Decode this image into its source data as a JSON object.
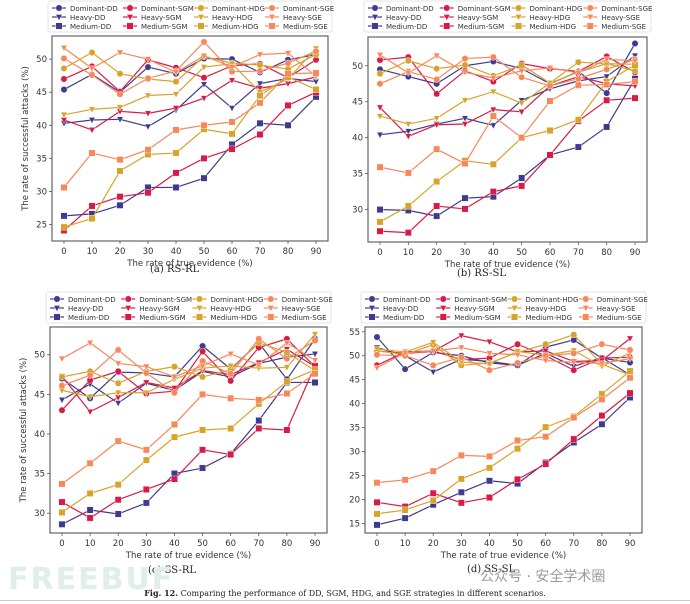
{
  "figure": {
    "caption_label": "Fig. 12.",
    "caption_text": " Comparing the performance of DD, SGM, HDG, and SGE strategies in different scenarios.",
    "watermark_logo": "FREEBUF",
    "watermark_text": "公众号 · 安全学术圈"
  },
  "styles": {
    "DD": "#3f3a8f",
    "SGM": "#d81b45",
    "HDG": "#d8a32a",
    "SGE": "#f8875a"
  },
  "chart_data": [
    {
      "id": "a",
      "type": "line",
      "subcaption": "(a)  RS-RL",
      "title": "",
      "xlabel": "The rate of true evidence (%)",
      "ylabel": "The rate of successful attacks (%)",
      "x": [
        0,
        10,
        20,
        30,
        40,
        50,
        60,
        70,
        80,
        90
      ],
      "xticks": [
        "0",
        "10",
        "20",
        "30",
        "40",
        "50",
        "60",
        "70",
        "80",
        "90"
      ],
      "ylim": [
        22.5,
        53.5
      ],
      "yticks": [
        25,
        30,
        35,
        40,
        45,
        50
      ],
      "grid": false,
      "legend": "top-outside",
      "series": [
        {
          "name": "Dominant-DD",
          "strategy": "DD",
          "marker": "circle",
          "values": [
            45.4,
            47.7,
            45.0,
            48.8,
            47.8,
            50.1,
            50.0,
            48.0,
            49.9,
            50.7
          ]
        },
        {
          "name": "Heavy-DD",
          "strategy": "DD",
          "marker": "triangle-down",
          "values": [
            40.3,
            40.8,
            40.9,
            39.8,
            42.3,
            46.2,
            42.6,
            46.3,
            47.1,
            46.6
          ]
        },
        {
          "name": "Medium-DD",
          "strategy": "DD",
          "marker": "square",
          "values": [
            26.3,
            26.6,
            27.9,
            30.6,
            30.6,
            32.0,
            37.1,
            40.3,
            40.0,
            44.3
          ]
        },
        {
          "name": "Dominant-SGM",
          "strategy": "SGM",
          "marker": "circle",
          "values": [
            47.0,
            48.9,
            45.1,
            49.9,
            48.7,
            47.2,
            49.0,
            49.3,
            47.2,
            49.9
          ]
        },
        {
          "name": "Heavy-SGM",
          "strategy": "SGM",
          "marker": "triangle-down",
          "values": [
            40.8,
            39.3,
            42.1,
            41.8,
            42.6,
            44.1,
            46.8,
            45.6,
            46.3,
            47.3
          ]
        },
        {
          "name": "Medium-SGM",
          "strategy": "SGM",
          "marker": "square",
          "values": [
            24.1,
            27.8,
            29.2,
            29.8,
            32.8,
            35.0,
            36.4,
            38.6,
            43.0,
            45.0
          ]
        },
        {
          "name": "Dominant-HDG",
          "strategy": "HDG",
          "marker": "circle",
          "values": [
            48.6,
            51.0,
            47.8,
            47.0,
            46.6,
            50.4,
            49.4,
            49.1,
            48.5,
            50.7
          ]
        },
        {
          "name": "Heavy-HDG",
          "strategy": "HDG",
          "marker": "triangle-down",
          "values": [
            41.6,
            42.4,
            42.7,
            44.5,
            44.7,
            48.8,
            49.3,
            45.0,
            47.0,
            51.6
          ]
        },
        {
          "name": "Medium-HDG",
          "strategy": "HDG",
          "marker": "square",
          "values": [
            24.6,
            25.9,
            33.1,
            35.6,
            35.8,
            39.4,
            38.7,
            44.5,
            47.3,
            45.4
          ]
        },
        {
          "name": "Dominant-SGE",
          "strategy": "SGE",
          "marker": "circle",
          "values": [
            50.1,
            47.6,
            44.7,
            47.1,
            48.2,
            52.6,
            48.1,
            48.2,
            49.4,
            51.2
          ]
        },
        {
          "name": "Heavy-SGE",
          "strategy": "SGE",
          "marker": "triangle-down",
          "values": [
            51.7,
            48.6,
            51.0,
            50.0,
            48.0,
            50.5,
            48.8,
            50.7,
            50.9,
            47.4
          ]
        },
        {
          "name": "Medium-SGE",
          "strategy": "SGE",
          "marker": "square",
          "values": [
            30.6,
            35.8,
            34.8,
            36.3,
            39.3,
            40.0,
            40.5,
            43.4,
            47.8,
            47.9
          ]
        }
      ]
    },
    {
      "id": "b",
      "type": "line",
      "subcaption": "(b)  RS-SL",
      "title": "",
      "xlabel": "The rate of true evidence (%)",
      "ylabel": "The rate of successful attacks (%)",
      "x": [
        0,
        10,
        20,
        30,
        40,
        50,
        60,
        70,
        80,
        90
      ],
      "xticks": [
        "0",
        "10",
        "20",
        "30",
        "40",
        "50",
        "60",
        "70",
        "80",
        "90"
      ],
      "ylim": [
        25.5,
        54.0
      ],
      "yticks": [
        30,
        35,
        40,
        45,
        50
      ],
      "grid": false,
      "legend": "top-outside",
      "series": [
        {
          "name": "Dominant-DD",
          "strategy": "DD",
          "marker": "circle",
          "values": [
            49.5,
            48.5,
            47.5,
            50.0,
            50.6,
            49.6,
            47.5,
            49.2,
            46.2,
            53.1
          ]
        },
        {
          "name": "Heavy-DD",
          "strategy": "DD",
          "marker": "triangle-down",
          "values": [
            40.4,
            40.9,
            41.9,
            42.7,
            41.7,
            45.2,
            46.8,
            47.9,
            48.5,
            51.4
          ]
        },
        {
          "name": "Medium-DD",
          "strategy": "DD",
          "marker": "square",
          "values": [
            30.0,
            29.9,
            29.1,
            31.6,
            31.8,
            34.4,
            37.6,
            38.7,
            41.5,
            48.2
          ]
        },
        {
          "name": "Dominant-SGM",
          "strategy": "SGM",
          "marker": "circle",
          "values": [
            50.8,
            51.2,
            46.1,
            49.3,
            47.8,
            50.3,
            49.6,
            49.2,
            51.3,
            49.1
          ]
        },
        {
          "name": "Heavy-SGM",
          "strategy": "SGM",
          "marker": "triangle-down",
          "values": [
            44.2,
            40.2,
            41.8,
            41.9,
            43.9,
            43.6,
            47.2,
            48.5,
            47.5,
            47.2
          ]
        },
        {
          "name": "Medium-SGM",
          "strategy": "SGM",
          "marker": "square",
          "values": [
            27.0,
            26.8,
            30.5,
            30.1,
            32.5,
            33.3,
            37.6,
            42.3,
            45.2,
            45.5
          ]
        },
        {
          "name": "Dominant-HDG",
          "strategy": "HDG",
          "marker": "circle",
          "values": [
            48.9,
            50.7,
            49.6,
            50.1,
            48.6,
            50.1,
            47.6,
            50.5,
            50.3,
            49.3
          ]
        },
        {
          "name": "Heavy-HDG",
          "strategy": "HDG",
          "marker": "triangle-down",
          "values": [
            43.0,
            41.9,
            42.7,
            45.2,
            46.4,
            44.8,
            47.6,
            49.1,
            50.3,
            50.2
          ]
        },
        {
          "name": "Medium-HDG",
          "strategy": "HDG",
          "marker": "square",
          "values": [
            28.3,
            30.5,
            33.9,
            36.8,
            36.3,
            40.0,
            41.0,
            42.5,
            47.8,
            50.1
          ]
        },
        {
          "name": "Dominant-SGE",
          "strategy": "SGE",
          "marker": "circle",
          "values": [
            47.5,
            49.2,
            48.1,
            51.0,
            51.2,
            48.4,
            47.2,
            48.2,
            49.5,
            50.9
          ]
        },
        {
          "name": "Heavy-SGE",
          "strategy": "SGE",
          "marker": "triangle-down",
          "values": [
            51.5,
            49.0,
            51.4,
            49.1,
            48.3,
            49.3,
            49.7,
            49.0,
            50.9,
            50.7
          ]
        },
        {
          "name": "Medium-SGE",
          "strategy": "SGE",
          "marker": "square",
          "values": [
            35.9,
            35.1,
            38.4,
            36.4,
            43.0,
            40.0,
            45.1,
            47.3,
            47.4,
            47.8
          ]
        }
      ]
    },
    {
      "id": "c",
      "type": "line",
      "subcaption": "(c)  SS-RL",
      "title": "",
      "xlabel": "The rate of true evidence (%)",
      "ylabel": "The rate of successful attacks (%)",
      "x": [
        0,
        10,
        20,
        30,
        40,
        50,
        60,
        70,
        80,
        90
      ],
      "xticks": [
        "0",
        "10",
        "20",
        "30",
        "40",
        "50",
        "60",
        "70",
        "80",
        "90"
      ],
      "ylim": [
        27.5,
        53.5
      ],
      "yticks": [
        30,
        35,
        40,
        45,
        50
      ],
      "grid": false,
      "legend": "top-outside",
      "series": [
        {
          "name": "Dominant-DD",
          "strategy": "DD",
          "marker": "circle",
          "values": [
            47.0,
            44.5,
            47.8,
            47.7,
            47.2,
            51.1,
            48.2,
            51.5,
            46.9,
            52.0
          ]
        },
        {
          "name": "Heavy-DD",
          "strategy": "DD",
          "marker": "triangle-down",
          "values": [
            44.3,
            46.3,
            43.9,
            46.4,
            45.5,
            47.9,
            47.2,
            48.9,
            49.7,
            50.1
          ]
        },
        {
          "name": "Medium-DD",
          "strategy": "DD",
          "marker": "square",
          "values": [
            28.6,
            30.4,
            29.9,
            31.3,
            35.0,
            35.7,
            37.5,
            41.7,
            46.5,
            46.5
          ]
        },
        {
          "name": "Dominant-SGM",
          "strategy": "SGM",
          "marker": "circle",
          "values": [
            43.0,
            46.8,
            47.9,
            45.1,
            45.4,
            50.4,
            46.7,
            50.9,
            52.0,
            48.5
          ]
        },
        {
          "name": "Heavy-SGM",
          "strategy": "SGM",
          "marker": "triangle-down",
          "values": [
            47.3,
            42.8,
            44.6,
            46.5,
            45.8,
            48.0,
            47.5,
            49.0,
            50.7,
            48.5
          ]
        },
        {
          "name": "Medium-SGM",
          "strategy": "SGM",
          "marker": "square",
          "values": [
            31.4,
            29.4,
            31.7,
            33.0,
            34.3,
            38.0,
            37.4,
            40.7,
            40.5,
            48.6
          ]
        },
        {
          "name": "Dominant-HDG",
          "strategy": "HDG",
          "marker": "circle",
          "values": [
            47.2,
            47.9,
            46.4,
            47.9,
            48.5,
            47.2,
            48.1,
            51.5,
            50.3,
            48.0
          ]
        },
        {
          "name": "Heavy-HDG",
          "strategy": "HDG",
          "marker": "triangle-down",
          "values": [
            45.5,
            44.7,
            45.2,
            45.2,
            46.9,
            48.3,
            48.6,
            48.3,
            48.4,
            52.6
          ]
        },
        {
          "name": "Medium-HDG",
          "strategy": "HDG",
          "marker": "square",
          "values": [
            30.1,
            32.5,
            33.6,
            36.7,
            39.6,
            40.5,
            40.7,
            43.8,
            46.6,
            48.1
          ]
        },
        {
          "name": "Dominant-SGE",
          "strategy": "SGE",
          "marker": "circle",
          "values": [
            46.1,
            47.4,
            50.6,
            47.7,
            45.2,
            49.2,
            47.6,
            52.0,
            49.5,
            51.8
          ]
        },
        {
          "name": "Heavy-SGE",
          "strategy": "SGE",
          "marker": "triangle-down",
          "values": [
            49.5,
            51.5,
            48.9,
            48.5,
            47.2,
            48.6,
            50.1,
            48.7,
            51.5,
            49.3
          ]
        },
        {
          "name": "Medium-SGE",
          "strategy": "SGE",
          "marker": "square",
          "values": [
            33.7,
            36.3,
            39.1,
            38.0,
            41.2,
            45.0,
            44.5,
            44.3,
            45.1,
            47.6
          ]
        }
      ]
    },
    {
      "id": "d",
      "type": "line",
      "subcaption": "(d)  SS-SL",
      "title": "",
      "xlabel": "The rate of true evidence (%)",
      "ylabel": "The rate of successful attacks (%)",
      "x": [
        0,
        10,
        20,
        30,
        40,
        50,
        60,
        70,
        80,
        90
      ],
      "xticks": [
        "0",
        "10",
        "20",
        "30",
        "40",
        "50",
        "60",
        "70",
        "80",
        "90"
      ],
      "ylim": [
        13.0,
        56.0
      ],
      "yticks": [
        15,
        20,
        25,
        30,
        35,
        40,
        45,
        50,
        55
      ],
      "grid": false,
      "legend": "top-outside",
      "series": [
        {
          "name": "Dominant-DD",
          "strategy": "DD",
          "marker": "circle",
          "values": [
            53.9,
            47.2,
            50.7,
            50.0,
            48.5,
            48.0,
            51.8,
            53.3,
            49.5,
            48.6
          ]
        },
        {
          "name": "Heavy-DD",
          "strategy": "DD",
          "marker": "triangle-down",
          "values": [
            51.7,
            50.0,
            46.6,
            49.3,
            48.8,
            48.0,
            50.5,
            47.8,
            49.6,
            46.0
          ]
        },
        {
          "name": "Medium-DD",
          "strategy": "DD",
          "marker": "square",
          "values": [
            14.7,
            16.1,
            18.9,
            21.5,
            23.9,
            23.3,
            27.7,
            31.9,
            35.7,
            41.3
          ]
        },
        {
          "name": "Dominant-SGM",
          "strategy": "SGM",
          "marker": "circle",
          "values": [
            48.0,
            50.8,
            51.0,
            49.2,
            49.5,
            52.4,
            50.0,
            47.0,
            49.5,
            49.7
          ]
        },
        {
          "name": "Heavy-SGM",
          "strategy": "SGM",
          "marker": "triangle-down",
          "values": [
            51.0,
            50.5,
            50.9,
            54.2,
            52.9,
            50.8,
            51.0,
            48.8,
            49.0,
            53.6
          ]
        },
        {
          "name": "Medium-SGM",
          "strategy": "SGM",
          "marker": "square",
          "values": [
            19.4,
            18.5,
            21.3,
            19.3,
            20.4,
            24.2,
            27.4,
            32.6,
            37.5,
            42.2
          ]
        },
        {
          "name": "Dominant-HDG",
          "strategy": "HDG",
          "marker": "circle",
          "values": [
            51.0,
            50.3,
            52.3,
            48.0,
            48.5,
            50.7,
            52.4,
            54.4,
            48.2,
            46.0
          ]
        },
        {
          "name": "Heavy-HDG",
          "strategy": "HDG",
          "marker": "triangle-down",
          "values": [
            51.4,
            50.8,
            52.8,
            48.7,
            48.3,
            50.9,
            50.1,
            51.1,
            47.8,
            50.6
          ]
        },
        {
          "name": "Medium-HDG",
          "strategy": "HDG",
          "marker": "square",
          "values": [
            17.0,
            17.8,
            19.8,
            24.3,
            26.6,
            30.6,
            35.1,
            37.3,
            42.0,
            46.8
          ]
        },
        {
          "name": "Dominant-SGE",
          "strategy": "SGE",
          "marker": "circle",
          "values": [
            50.2,
            50.0,
            48.0,
            49.7,
            47.0,
            48.5,
            50.0,
            50.5,
            52.4,
            51.2
          ]
        },
        {
          "name": "Heavy-SGE",
          "strategy": "SGE",
          "marker": "triangle-down",
          "values": [
            47.5,
            50.6,
            51.0,
            51.7,
            50.5,
            50.2,
            49.0,
            48.6,
            48.4,
            49.4
          ]
        },
        {
          "name": "Medium-SGE",
          "strategy": "SGE",
          "marker": "square",
          "values": [
            23.5,
            24.1,
            25.9,
            29.2,
            29.0,
            32.3,
            33.1,
            37.1,
            40.9,
            45.4
          ]
        }
      ]
    }
  ]
}
